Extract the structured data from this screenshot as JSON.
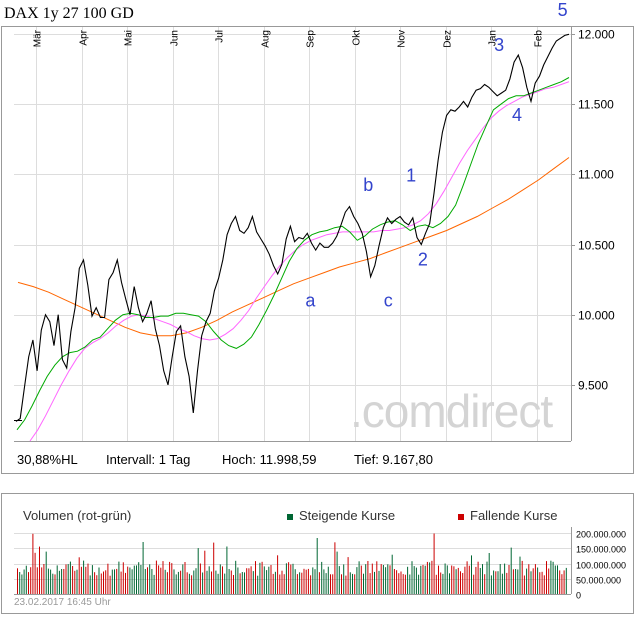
{
  "chart_data": [
    {
      "type": "line",
      "title": "DAX 1y 27 100 GD",
      "months": [
        "Mär",
        "Apr",
        "Mai",
        "Jun",
        "Jul",
        "Aug",
        "Sep",
        "Okt",
        "Nov",
        "Dez",
        "Jan",
        "Feb"
      ],
      "ylim": [
        9100,
        12050
      ],
      "yticks": [
        "12.000",
        "11.500",
        "11.000",
        "10.500",
        "10.000",
        "9.500"
      ],
      "ytick_values": [
        12000,
        11500,
        11000,
        10500,
        10000,
        9500
      ],
      "grid": true,
      "series": [
        {
          "key": "price",
          "color": "#000000",
          "values": [
            9240,
            9260,
            9480,
            9700,
            9820,
            9600,
            9890,
            10000,
            9950,
            9780,
            10000,
            9680,
            9620,
            9880,
            10050,
            10330,
            10390,
            10210,
            9990,
            10050,
            9980,
            9980,
            10250,
            10300,
            10390,
            10230,
            10110,
            10000,
            10200,
            10050,
            9950,
            10010,
            10100,
            9900,
            9780,
            9600,
            9500,
            9700,
            9880,
            9920,
            9700,
            9560,
            9300,
            9600,
            9850,
            9950,
            10010,
            10170,
            10260,
            10390,
            10570,
            10650,
            10700,
            10600,
            10580,
            10620,
            10700,
            10590,
            10540,
            10490,
            10430,
            10350,
            10290,
            10360,
            10540,
            10630,
            10520,
            10550,
            10540,
            10580,
            10510,
            10460,
            10510,
            10480,
            10480,
            10510,
            10560,
            10640,
            10730,
            10770,
            10700,
            10650,
            10580,
            10450,
            10270,
            10350,
            10490,
            10620,
            10690,
            10650,
            10680,
            10700,
            10660,
            10640,
            10690,
            10550,
            10500,
            10580,
            10650,
            10860,
            11100,
            11300,
            11420,
            11460,
            11450,
            11480,
            11520,
            11480,
            11550,
            11600,
            11610,
            11640,
            11620,
            11590,
            11560,
            11580,
            11600,
            11680,
            11800,
            11850,
            11760,
            11620,
            11520,
            11650,
            11700,
            11780,
            11840,
            11900,
            11950,
            11970,
            11990,
            11998
          ]
        },
        {
          "key": "ma27",
          "color": "#00aa00",
          "values": [
            9180,
            9250,
            9350,
            9460,
            9560,
            9640,
            9700,
            9730,
            9740,
            9770,
            9820,
            9840,
            9900,
            9960,
            10000,
            10010,
            10000,
            9980,
            9980,
            9990,
            9990,
            10010,
            10010,
            10000,
            9990,
            9950,
            9880,
            9820,
            9780,
            9760,
            9790,
            9840,
            9930,
            10030,
            10140,
            10260,
            10380,
            10470,
            10530,
            10570,
            10590,
            10600,
            10620,
            10630,
            10590,
            10530,
            10560,
            10610,
            10640,
            10660,
            10670,
            10640,
            10600,
            10630,
            10640,
            10620,
            10650,
            10700,
            10780,
            10920,
            11070,
            11220,
            11340,
            11460,
            11500,
            11540,
            11560,
            11560,
            11580,
            11600,
            11620,
            11640,
            11660,
            11690
          ]
        },
        {
          "key": "ma100",
          "color": "#ff66ff",
          "values": [
            9100,
            9180,
            9280,
            9390,
            9500,
            9600,
            9690,
            9760,
            9800,
            9830,
            9870,
            9920,
            9960,
            9990,
            10000,
            9990,
            9970,
            9950,
            9930,
            9900,
            9880,
            9850,
            9830,
            9820,
            9830,
            9860,
            9900,
            9960,
            10030,
            10120,
            10200,
            10280,
            10350,
            10410,
            10460,
            10500,
            10530,
            10550,
            10570,
            10580,
            10590,
            10590,
            10590,
            10590,
            10590,
            10600,
            10600,
            10610,
            10620,
            10640,
            10670,
            10720,
            10790,
            10880,
            10980,
            11080,
            11170,
            11250,
            11330,
            11400,
            11450,
            11490,
            11520,
            11550,
            11570,
            11590,
            11610,
            11620,
            11640,
            11660
          ]
        },
        {
          "key": "ma200",
          "color": "#ff6600",
          "values": [
            10230,
            10200,
            10160,
            10110,
            10060,
            10010,
            9960,
            9910,
            9870,
            9850,
            9850,
            9870,
            9910,
            9960,
            10020,
            10070,
            10120,
            10170,
            10220,
            10260,
            10300,
            10340,
            10370,
            10400,
            10440,
            10480,
            10520,
            10560,
            10600,
            10650,
            10700,
            10760,
            10820,
            10890,
            10960,
            11040,
            11120
          ]
        }
      ],
      "annotations": [
        {
          "label": "5",
          "x": 0.985,
          "y": 12130
        },
        {
          "label": "3",
          "x": 0.871,
          "y": 11880
        },
        {
          "label": "4",
          "x": 0.903,
          "y": 11380
        },
        {
          "label": "1",
          "x": 0.713,
          "y": 10950
        },
        {
          "label": "b",
          "x": 0.636,
          "y": 10880
        },
        {
          "label": "2",
          "x": 0.734,
          "y": 10350
        },
        {
          "label": "a",
          "x": 0.532,
          "y": 10060
        },
        {
          "label": "c",
          "x": 0.672,
          "y": 10060
        }
      ]
    },
    {
      "type": "bar",
      "title": "Volumen (rot-grün)",
      "ylim": [
        0,
        220000000
      ],
      "yticks": [
        "200.000.000",
        "150.000.000",
        "100.000.000",
        "50.000.000",
        "0"
      ],
      "ytick_values": [
        200000000,
        150000000,
        100000000,
        50000000,
        0
      ],
      "series": [
        {
          "name": "Steigende Kurse",
          "color": "#006633"
        },
        {
          "name": "Fallende Kurse",
          "color": "#cc0000"
        }
      ]
    }
  ],
  "info": {
    "hl": "30,88%HL",
    "interval": "Intervall: 1 Tag",
    "high": "Hoch:  11.998,59",
    "low": "Tief:  9.167,80"
  },
  "timestamp": "23.02.2017 16:45 Uhr",
  "watermark": ".comdirect"
}
